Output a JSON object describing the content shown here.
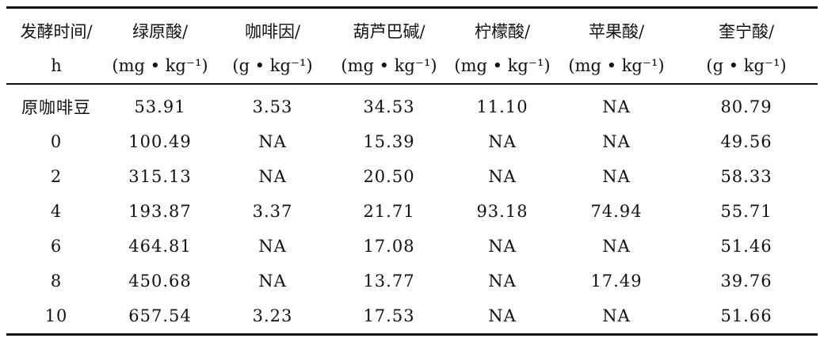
{
  "table": {
    "header": [
      {
        "name": "发酵时间/",
        "unit": "h"
      },
      {
        "name": "绿原酸/",
        "unit": "(mg • kg⁻¹)"
      },
      {
        "name": "咖啡因/",
        "unit": "(g • kg⁻¹)"
      },
      {
        "name": "葫芦巴碱/",
        "unit": "(mg • kg⁻¹)"
      },
      {
        "name": "柠檬酸/",
        "unit": "(mg • kg⁻¹)"
      },
      {
        "name": "苹果酸/",
        "unit": "(mg • kg⁻¹)"
      },
      {
        "name": "奎宁酸/",
        "unit": "(g • kg⁻¹)"
      }
    ],
    "rows": [
      [
        "原咖啡豆",
        "53.91",
        "3.53",
        "34.53",
        "11.10",
        "NA",
        "80.79"
      ],
      [
        "0",
        "100.49",
        "NA",
        "15.39",
        "NA",
        "NA",
        "49.56"
      ],
      [
        "2",
        "315.13",
        "NA",
        "20.50",
        "NA",
        "NA",
        "58.33"
      ],
      [
        "4",
        "193.87",
        "3.37",
        "21.71",
        "93.18",
        "74.94",
        "55.71"
      ],
      [
        "6",
        "464.81",
        "NA",
        "17.08",
        "NA",
        "NA",
        "51.46"
      ],
      [
        "8",
        "450.68",
        "NA",
        "13.77",
        "NA",
        "17.49",
        "39.76"
      ],
      [
        "10",
        "657.54",
        "3.23",
        "17.53",
        "NA",
        "NA",
        "51.66"
      ]
    ]
  }
}
